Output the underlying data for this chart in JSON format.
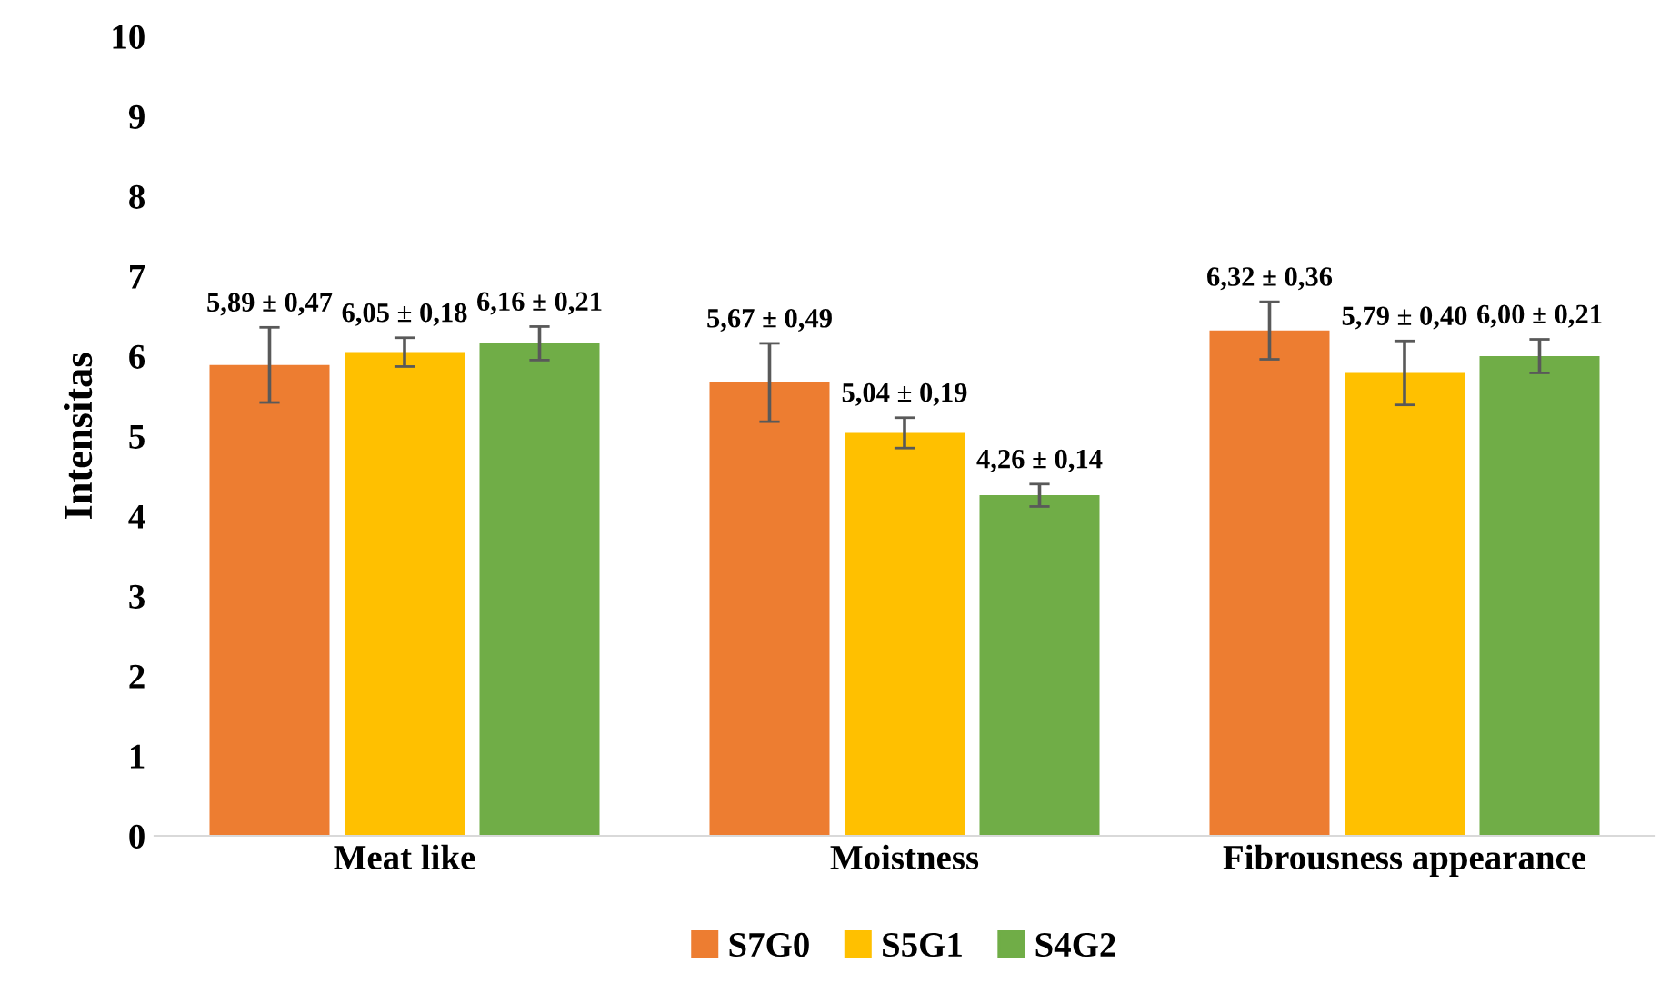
{
  "chart_data": {
    "type": "bar",
    "ylabel": "Intensitas",
    "categories": [
      "Meat like",
      "Moistness",
      "Fibrousness appearance"
    ],
    "series": [
      {
        "name": "S7G0",
        "color": "#ed7d31",
        "values": [
          5.89,
          5.67,
          6.32
        ],
        "errors": [
          0.47,
          0.49,
          0.36
        ],
        "value_labels": [
          "5,89 ± 0,47",
          "5,67 ± 0,49",
          "6,32 ± 0,36"
        ]
      },
      {
        "name": "S5G1",
        "color": "#ffc000",
        "values": [
          6.05,
          5.04,
          5.79
        ],
        "errors": [
          0.18,
          0.19,
          0.4
        ],
        "value_labels": [
          "6,05 ± 0,18",
          "5,04 ± 0,19",
          "5,79 ± 0,40"
        ]
      },
      {
        "name": "S4G2",
        "color": "#70ad47",
        "values": [
          6.16,
          4.26,
          6.0
        ],
        "errors": [
          0.21,
          0.14,
          0.21
        ],
        "value_labels": [
          "6,16 ± 0,21",
          "4,26 ± 0,14",
          "6,00 ± 0,21"
        ]
      }
    ],
    "ylim": [
      0,
      10
    ],
    "yticks": [
      0,
      1,
      2,
      3,
      4,
      5,
      6,
      7,
      8,
      9,
      10
    ],
    "grid": false,
    "legend": "bottom"
  }
}
